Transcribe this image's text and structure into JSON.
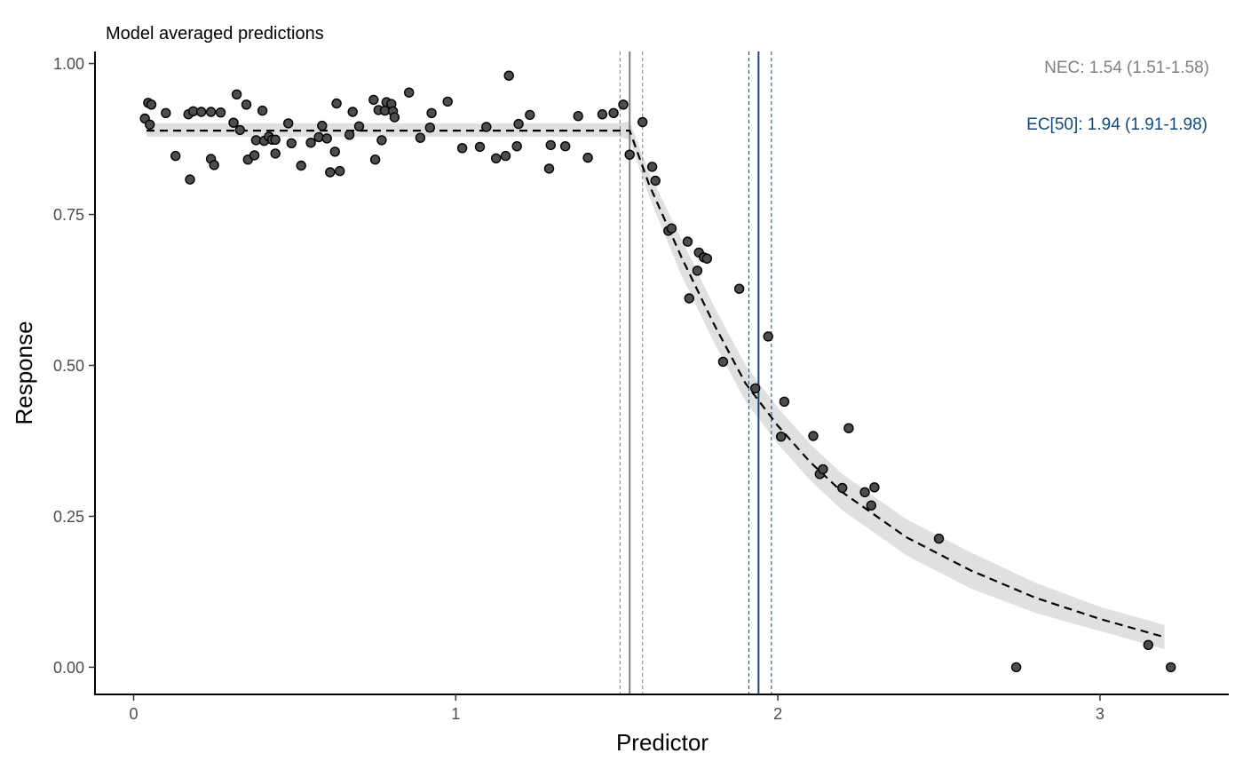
{
  "chart_data": {
    "type": "scatter",
    "title": "Model averaged predictions",
    "xlabel": "Predictor",
    "ylabel": "Response",
    "xlim": [
      -0.12,
      3.4
    ],
    "ylim": [
      -0.045,
      1.02
    ],
    "xticks": [
      0,
      1,
      2,
      3
    ],
    "xtick_labels": [
      "0",
      "1",
      "2",
      "3"
    ],
    "yticks": [
      0,
      0.25,
      0.5,
      0.75,
      1.0
    ],
    "ytick_labels": [
      "0.00",
      "0.25",
      "0.50",
      "0.75",
      "1.00"
    ],
    "grid": false,
    "colors": {
      "points_fill": "#4d4d4d",
      "points_stroke": "#000000",
      "fit_line": "#000000",
      "ribbon": "#e0e0e0",
      "nec_line": "#7f7f7f",
      "ec50_line": "#0d4a86",
      "nec_text": "#808080",
      "ec50_text": "#0d4a86",
      "axis": "#000000"
    },
    "annotations": {
      "nec": "NEC: 1.54 (1.51-1.58)",
      "ec50": "EC[50]: 1.94 (1.91-1.98)"
    },
    "vertical_lines": {
      "nec": {
        "value": 1.54,
        "lower": 1.51,
        "upper": 1.58
      },
      "ec50": {
        "value": 1.94,
        "lower": 1.91,
        "upper": 1.98
      }
    },
    "fit": {
      "x": [
        0.04,
        0.3,
        0.6,
        0.9,
        1.2,
        1.5,
        1.54,
        1.6,
        1.7,
        1.8,
        1.9,
        2.0,
        2.1,
        2.2,
        2.4,
        2.6,
        2.8,
        3.0,
        3.2
      ],
      "y": [
        0.889,
        0.889,
        0.889,
        0.889,
        0.889,
        0.889,
        0.889,
        0.8,
        0.68,
        0.57,
        0.47,
        0.4,
        0.34,
        0.29,
        0.215,
        0.16,
        0.115,
        0.08,
        0.05
      ],
      "lower": [
        0.879,
        0.879,
        0.879,
        0.879,
        0.879,
        0.879,
        0.874,
        0.78,
        0.65,
        0.54,
        0.44,
        0.37,
        0.31,
        0.26,
        0.185,
        0.13,
        0.09,
        0.06,
        0.03
      ],
      "upper": [
        0.901,
        0.901,
        0.901,
        0.901,
        0.901,
        0.901,
        0.904,
        0.82,
        0.71,
        0.6,
        0.5,
        0.43,
        0.37,
        0.32,
        0.245,
        0.19,
        0.14,
        0.1,
        0.07
      ]
    },
    "points": {
      "x": [
        0.035,
        0.045,
        0.05,
        0.055,
        0.1,
        0.13,
        0.17,
        0.175,
        0.185,
        0.21,
        0.24,
        0.24,
        0.25,
        0.27,
        0.31,
        0.32,
        0.33,
        0.35,
        0.355,
        0.375,
        0.38,
        0.4,
        0.405,
        0.42,
        0.43,
        0.44,
        0.44,
        0.48,
        0.49,
        0.52,
        0.55,
        0.575,
        0.585,
        0.6,
        0.61,
        0.625,
        0.63,
        0.64,
        0.67,
        0.68,
        0.7,
        0.745,
        0.75,
        0.76,
        0.77,
        0.78,
        0.785,
        0.8,
        0.805,
        0.81,
        0.855,
        0.89,
        0.92,
        0.925,
        0.975,
        1.02,
        1.075,
        1.095,
        1.125,
        1.155,
        1.165,
        1.19,
        1.195,
        1.23,
        1.29,
        1.295,
        1.34,
        1.38,
        1.41,
        1.455,
        1.49,
        1.52,
        1.54,
        1.58,
        1.61,
        1.62,
        1.66,
        1.67,
        1.72,
        1.725,
        1.75,
        1.755,
        1.77,
        1.78,
        1.83,
        1.88,
        1.93,
        1.97,
        2.01,
        2.02,
        2.11,
        2.13,
        2.14,
        2.2,
        2.22,
        2.27,
        2.29,
        2.3,
        2.5,
        2.74,
        3.15,
        3.22
      ],
      "y": [
        0.909,
        0.935,
        0.899,
        0.932,
        0.918,
        0.847,
        0.916,
        0.808,
        0.921,
        0.92,
        0.92,
        0.842,
        0.832,
        0.919,
        0.902,
        0.949,
        0.89,
        0.932,
        0.841,
        0.848,
        0.873,
        0.922,
        0.872,
        0.879,
        0.874,
        0.851,
        0.874,
        0.901,
        0.868,
        0.831,
        0.869,
        0.878,
        0.897,
        0.876,
        0.82,
        0.854,
        0.934,
        0.822,
        0.882,
        0.92,
        0.896,
        0.94,
        0.841,
        0.923,
        0.873,
        0.922,
        0.936,
        0.933,
        0.921,
        0.911,
        0.952,
        0.877,
        0.894,
        0.918,
        0.937,
        0.86,
        0.862,
        0.895,
        0.843,
        0.847,
        0.98,
        0.863,
        0.9,
        0.915,
        0.826,
        0.865,
        0.863,
        0.913,
        0.844,
        0.916,
        0.918,
        0.932,
        0.849,
        0.903,
        0.829,
        0.806,
        0.723,
        0.727,
        0.705,
        0.611,
        0.657,
        0.687,
        0.679,
        0.677,
        0.506,
        0.627,
        0.462,
        0.548,
        0.382,
        0.44,
        0.383,
        0.32,
        0.328,
        0.297,
        0.396,
        0.29,
        0.268,
        0.298,
        0.213,
        0.0,
        0.037,
        0.0
      ]
    }
  }
}
